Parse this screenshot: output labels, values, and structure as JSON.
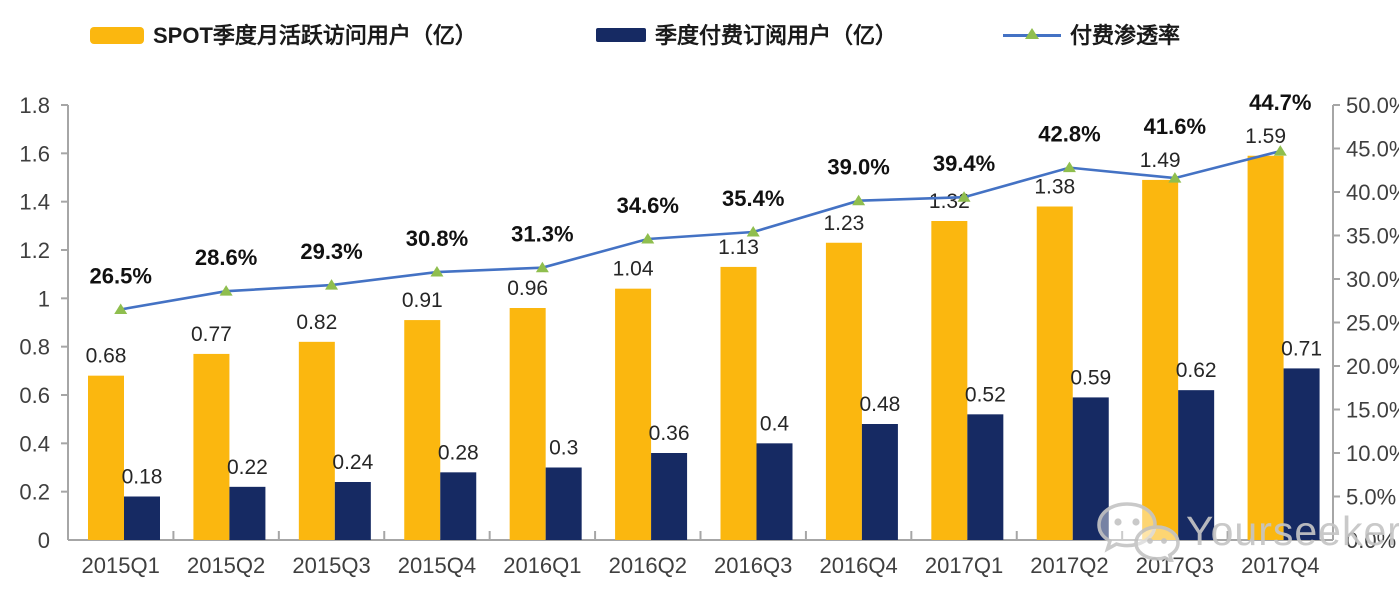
{
  "legend": {
    "items": [
      {
        "label": "SPOT季度月活跃访问用户（亿）",
        "color": "#FBB70F",
        "type": "bar"
      },
      {
        "label": "季度付费订阅用户（亿）",
        "color": "#162A63",
        "type": "bar"
      },
      {
        "label": "付费渗透率",
        "color": "#4472C4",
        "marker_color": "#8FBE4E",
        "type": "line"
      }
    ]
  },
  "watermark": {
    "text": "Yourseeker",
    "icon": "wechat-icon",
    "color": "#c5c5c5"
  },
  "chart_data": {
    "type": "bar",
    "subtype": "grouped-bars-with-line-overlay",
    "categories": [
      "2015Q1",
      "2015Q2",
      "2015Q3",
      "2015Q4",
      "2016Q1",
      "2016Q2",
      "2016Q3",
      "2016Q4",
      "2017Q1",
      "2017Q2",
      "2017Q3",
      "2017Q4"
    ],
    "series": [
      {
        "name": "SPOT季度月活跃访问用户（亿）",
        "type": "bar",
        "axis": "left",
        "color": "#FBB70F",
        "values": [
          0.68,
          0.77,
          0.82,
          0.91,
          0.96,
          1.04,
          1.13,
          1.23,
          1.32,
          1.38,
          1.49,
          1.59
        ],
        "labels": [
          "0.68",
          "0.77",
          "0.82",
          "0.91",
          "0.96",
          "1.04",
          "1.13",
          "1.23",
          "1.32",
          "1.38",
          "1.49",
          "1.59"
        ]
      },
      {
        "name": "季度付费订阅用户（亿）",
        "type": "bar",
        "axis": "left",
        "color": "#162A63",
        "values": [
          0.18,
          0.22,
          0.24,
          0.28,
          0.3,
          0.36,
          0.4,
          0.48,
          0.52,
          0.59,
          0.62,
          0.71
        ],
        "labels": [
          "0.18",
          "0.22",
          "0.24",
          "0.28",
          "0.3",
          "0.36",
          "0.4",
          "0.48",
          "0.52",
          "0.59",
          "0.62",
          "0.71"
        ]
      },
      {
        "name": "付费渗透率",
        "type": "line",
        "axis": "right",
        "color": "#4472C4",
        "marker": "triangle",
        "marker_color": "#8FBE4E",
        "values": [
          26.5,
          28.6,
          29.3,
          30.8,
          31.3,
          34.6,
          35.4,
          39.0,
          39.4,
          42.8,
          41.6,
          44.7
        ],
        "labels": [
          "26.5%",
          "28.6%",
          "29.3%",
          "30.8%",
          "31.3%",
          "34.6%",
          "35.4%",
          "39.0%",
          "39.4%",
          "42.8%",
          "41.6%",
          "44.7%"
        ]
      }
    ],
    "left_axis": {
      "min": 0,
      "max": 1.8,
      "step": 0.2,
      "tick_labels": [
        "0",
        "0.2",
        "0.4",
        "0.6",
        "0.8",
        "1",
        "1.2",
        "1.4",
        "1.6",
        "1.8"
      ]
    },
    "right_axis": {
      "min": 0,
      "max": 50,
      "step": 5,
      "tick_labels": [
        "0.0%",
        "5.0%",
        "10.0%",
        "15.0%",
        "20.0%",
        "25.0%",
        "30.0%",
        "35.0%",
        "40.0%",
        "45.0%",
        "50.0%"
      ]
    },
    "grid": false,
    "legend_position": "top",
    "axis_color": "#A6A6A6",
    "tick_text_color": "#3f3f3f",
    "value_label_color": "#262626",
    "pct_label_color": "#111111"
  }
}
